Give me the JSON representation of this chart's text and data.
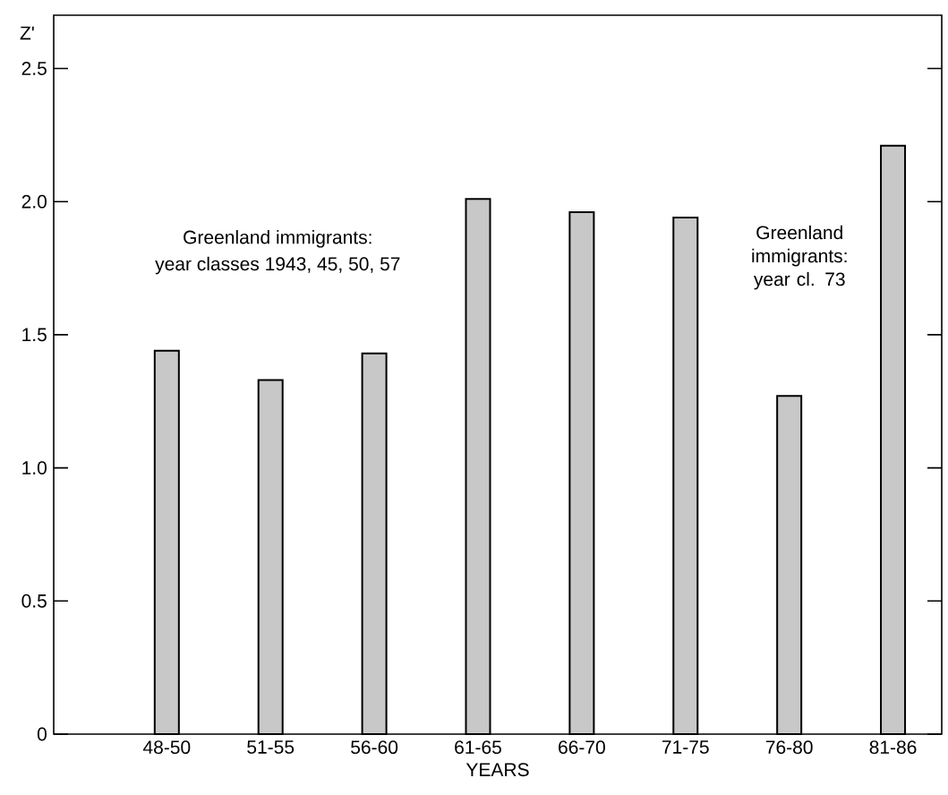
{
  "chart_data": {
    "type": "bar",
    "xlabel": "YEARS",
    "ylabel": "Z'",
    "categories": [
      "48-50",
      "51-55",
      "56-60",
      "61-65",
      "66-70",
      "71-75",
      "76-80",
      "81-86"
    ],
    "values": [
      1.44,
      1.33,
      1.43,
      2.01,
      1.96,
      1.94,
      1.27,
      2.21
    ],
    "color": "#c8c8c8",
    "ylim": [
      0,
      2.7
    ],
    "yticks": [
      {
        "value": 0,
        "label": "0"
      },
      {
        "value": 0.5,
        "label": "0.5"
      },
      {
        "value": 1.0,
        "label": "1.0"
      },
      {
        "value": 1.5,
        "label": "1.5"
      },
      {
        "value": 2.0,
        "label": "2.0"
      },
      {
        "value": 2.5,
        "label": "2.5"
      }
    ],
    "annotations": [
      "Greenland immigrants:",
      "year classes 1943, 45, 50, 57",
      "Greenland immigrants: year cl. 73"
    ],
    "grid": false
  }
}
